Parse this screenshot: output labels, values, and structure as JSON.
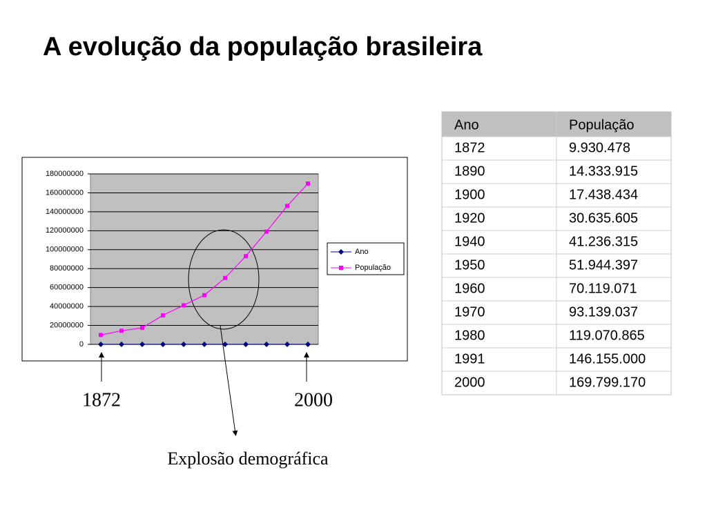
{
  "title": "A evolução da população brasileira",
  "chart_data": {
    "type": "line",
    "categories": [
      null,
      null,
      null,
      null,
      null,
      null,
      null,
      null,
      null,
      null,
      null
    ],
    "series": [
      {
        "name": "Ano",
        "color": "#000080",
        "marker": "diamond",
        "values": [
          1872,
          1890,
          1900,
          1920,
          1940,
          1950,
          1960,
          1970,
          1980,
          1991,
          2000
        ]
      },
      {
        "name": "População",
        "color": "#ff00ff",
        "marker": "square",
        "values": [
          9930478,
          14333915,
          17438434,
          30635605,
          41236315,
          51944397,
          70119071,
          93139037,
          119070865,
          146155000,
          169799170
        ]
      }
    ],
    "ylim": [
      0,
      180000000
    ],
    "yticks": [
      0,
      20000000,
      40000000,
      60000000,
      80000000,
      100000000,
      120000000,
      140000000,
      160000000,
      180000000
    ],
    "grid": true,
    "legend": "right"
  },
  "annotations": {
    "start": "1872",
    "end": "2000",
    "highlight": "Explosão demográfica"
  },
  "table": {
    "header": [
      "Ano",
      "População"
    ],
    "rows": [
      [
        "1872",
        "9.930.478"
      ],
      [
        "1890",
        "14.333.915"
      ],
      [
        "1900",
        "17.438.434"
      ],
      [
        "1920",
        "30.635.605"
      ],
      [
        "1940",
        "41.236.315"
      ],
      [
        "1950",
        "51.944.397"
      ],
      [
        "1960",
        "70.119.071"
      ],
      [
        "1970",
        "93.139.037"
      ],
      [
        "1980",
        "119.070.865"
      ],
      [
        "1991",
        "146.155.000"
      ],
      [
        "2000",
        "169.799.170"
      ]
    ]
  }
}
